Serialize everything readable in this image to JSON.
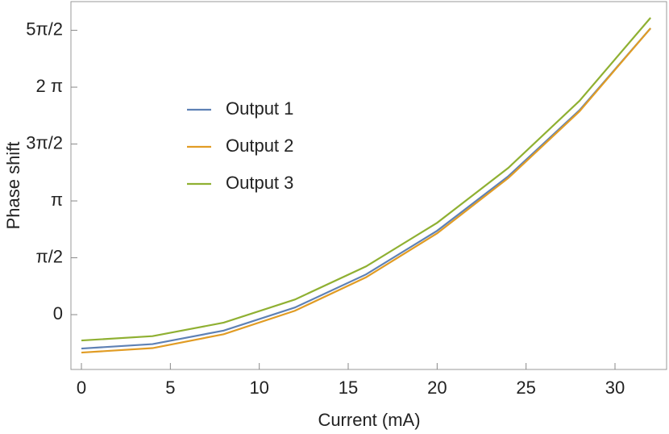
{
  "chart_data": {
    "type": "line",
    "x_label": "Current (mA)",
    "y_label": "Phase shift",
    "x": [
      0,
      4,
      8,
      12,
      16,
      20,
      24,
      28,
      32
    ],
    "series": [
      {
        "name": "Output 1",
        "color": "#5e81b5",
        "values": [
          -0.936,
          -0.814,
          -0.441,
          0.197,
          1.111,
          2.317,
          3.823,
          5.644,
          7.91
        ]
      },
      {
        "name": "Output 2",
        "color": "#e19c24",
        "values": [
          -1.047,
          -0.924,
          -0.541,
          0.107,
          1.031,
          2.247,
          3.773,
          5.614,
          7.91
        ]
      },
      {
        "name": "Output 3",
        "color": "#8fb032",
        "values": [
          -0.713,
          -0.594,
          -0.221,
          0.417,
          1.331,
          2.537,
          4.053,
          5.904,
          8.2
        ]
      }
    ],
    "xlim": [
      -0.59,
      32.9
    ],
    "ylim": [
      -1.514,
      8.646
    ],
    "xticks": [
      0,
      5,
      10,
      15,
      20,
      25,
      30
    ],
    "yticks": [
      0,
      {
        "value": 1.5708,
        "label": "π/2"
      },
      {
        "value": 3.1416,
        "label": "π"
      },
      {
        "value": 4.7124,
        "label": "3π/2"
      },
      {
        "value": 6.2832,
        "label": "2 π"
      },
      {
        "value": 7.854,
        "label": "5π/2"
      }
    ],
    "legend": "upper-left"
  }
}
